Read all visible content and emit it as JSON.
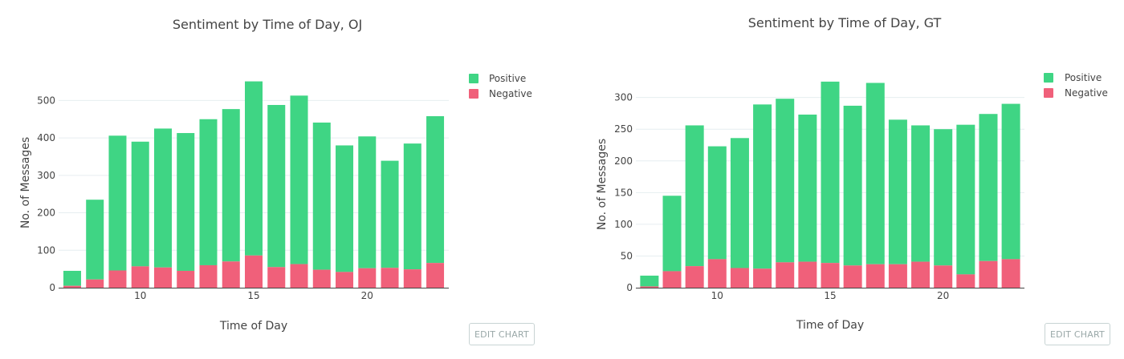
{
  "edit_label": "EDIT CHART",
  "colors": {
    "positive": "#3fd584",
    "negative": "#f0607a"
  },
  "chart_data": [
    {
      "type": "bar",
      "stacked": true,
      "title": "Sentiment by Time of Day, OJ",
      "xlabel": "Time of Day",
      "ylabel": "No. of Messages",
      "x": [
        7,
        8,
        9,
        10,
        11,
        12,
        13,
        14,
        15,
        16,
        17,
        18,
        19,
        20,
        21,
        22,
        23
      ],
      "xticks": [
        10,
        15,
        20
      ],
      "yticks": [
        0,
        100,
        200,
        300,
        400,
        500
      ],
      "xlim": [
        6.4,
        23.6
      ],
      "ylim": [
        0,
        580
      ],
      "grid": true,
      "legend_position": "top-right",
      "series": [
        {
          "name": "Positive",
          "color": "#3fd584",
          "values": [
            40,
            213,
            360,
            333,
            371,
            368,
            390,
            407,
            465,
            433,
            450,
            393,
            338,
            352,
            286,
            336,
            392
          ]
        },
        {
          "name": "Negative",
          "color": "#f0607a",
          "values": [
            5,
            22,
            46,
            57,
            54,
            45,
            60,
            70,
            86,
            55,
            63,
            48,
            42,
            52,
            53,
            49,
            66
          ]
        }
      ]
    },
    {
      "type": "bar",
      "stacked": true,
      "title": "Sentiment by Time of Day, GT",
      "xlabel": "Time of Day",
      "ylabel": "No. of Messages",
      "x": [
        7,
        8,
        9,
        10,
        11,
        12,
        13,
        14,
        15,
        16,
        17,
        18,
        19,
        20,
        21,
        22,
        23
      ],
      "xticks": [
        10,
        15,
        20
      ],
      "yticks": [
        0,
        50,
        100,
        150,
        200,
        250,
        300
      ],
      "xlim": [
        6.4,
        23.6
      ],
      "ylim": [
        0,
        340
      ],
      "grid": true,
      "legend_position": "top-right",
      "series": [
        {
          "name": "Positive",
          "color": "#3fd584",
          "values": [
            17,
            119,
            222,
            178,
            205,
            259,
            258,
            232,
            286,
            252,
            286,
            228,
            215,
            215,
            236,
            232,
            245
          ]
        },
        {
          "name": "Negative",
          "color": "#f0607a",
          "values": [
            2,
            26,
            34,
            45,
            31,
            30,
            40,
            41,
            39,
            35,
            37,
            37,
            41,
            35,
            21,
            42,
            45
          ]
        }
      ]
    }
  ]
}
